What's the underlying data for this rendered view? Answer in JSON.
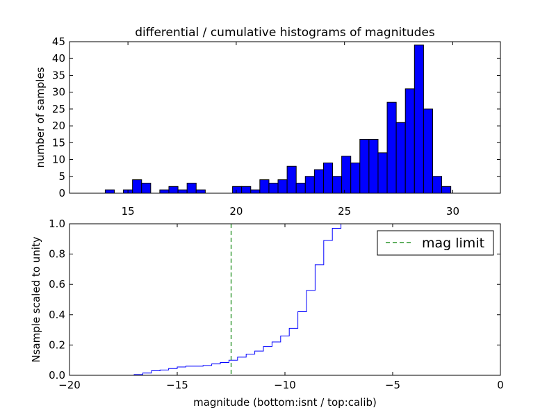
{
  "chart_data": [
    {
      "type": "bar",
      "title": "differential / cumulative histograms of magnitudes",
      "xlabel": "",
      "ylabel": "number of samples",
      "xlim": [
        12.3,
        32.2
      ],
      "ylim": [
        0,
        45
      ],
      "x_ticks": [
        15,
        20,
        25,
        30
      ],
      "y_ticks": [
        0,
        5,
        10,
        15,
        20,
        25,
        30,
        35,
        40,
        45
      ],
      "bar_color": "#0000ff",
      "bin_start": 13.95,
      "bin_width": 0.42,
      "values": [
        1,
        0,
        1,
        4,
        3,
        0,
        1,
        2,
        1,
        3,
        1,
        0,
        0,
        0,
        2,
        2,
        1,
        4,
        3,
        4,
        8,
        3,
        5,
        7,
        9,
        5,
        11,
        9,
        16,
        16,
        12,
        27,
        21,
        31,
        44,
        25,
        5,
        2
      ]
    },
    {
      "type": "line",
      "step": true,
      "xlabel": "magnitude (bottom:isnt / top:calib)",
      "ylabel": "Nsample scaled to unity",
      "xlim": [
        -20,
        0
      ],
      "ylim": [
        0,
        1.0
      ],
      "x_ticks": [
        -20,
        -15,
        -10,
        -5,
        0
      ],
      "x_tick_labels": [
        "−20",
        "−15",
        "−10",
        "−5",
        "0"
      ],
      "y_ticks": [
        0,
        0.2,
        0.4,
        0.6,
        0.8,
        1.0
      ],
      "y_tick_labels": [
        "0.0",
        "0.2",
        "0.4",
        "0.6",
        "0.8",
        "1.0"
      ],
      "legend": {
        "label": "mag limit",
        "location": "top-right"
      },
      "mag_limit": -12.5,
      "series": [
        {
          "color": "#0000ff",
          "x": [
            -20,
            -17.0,
            -16.6,
            -16.2,
            -15.8,
            -15.4,
            -15.0,
            -14.6,
            -14.2,
            -13.8,
            -13.4,
            -13.0,
            -12.6,
            -12.2,
            -11.8,
            -11.4,
            -11.0,
            -10.6,
            -10.2,
            -9.8,
            -9.4,
            -9.0,
            -8.6,
            -8.2,
            -7.8,
            -7.4,
            0
          ],
          "y": [
            0,
            0.005,
            0.015,
            0.03,
            0.035,
            0.045,
            0.055,
            0.06,
            0.06,
            0.065,
            0.075,
            0.085,
            0.1,
            0.12,
            0.14,
            0.16,
            0.19,
            0.22,
            0.26,
            0.31,
            0.42,
            0.56,
            0.73,
            0.89,
            0.97,
            1.0,
            1.0
          ]
        }
      ],
      "limit_line_color": "#008000"
    }
  ]
}
